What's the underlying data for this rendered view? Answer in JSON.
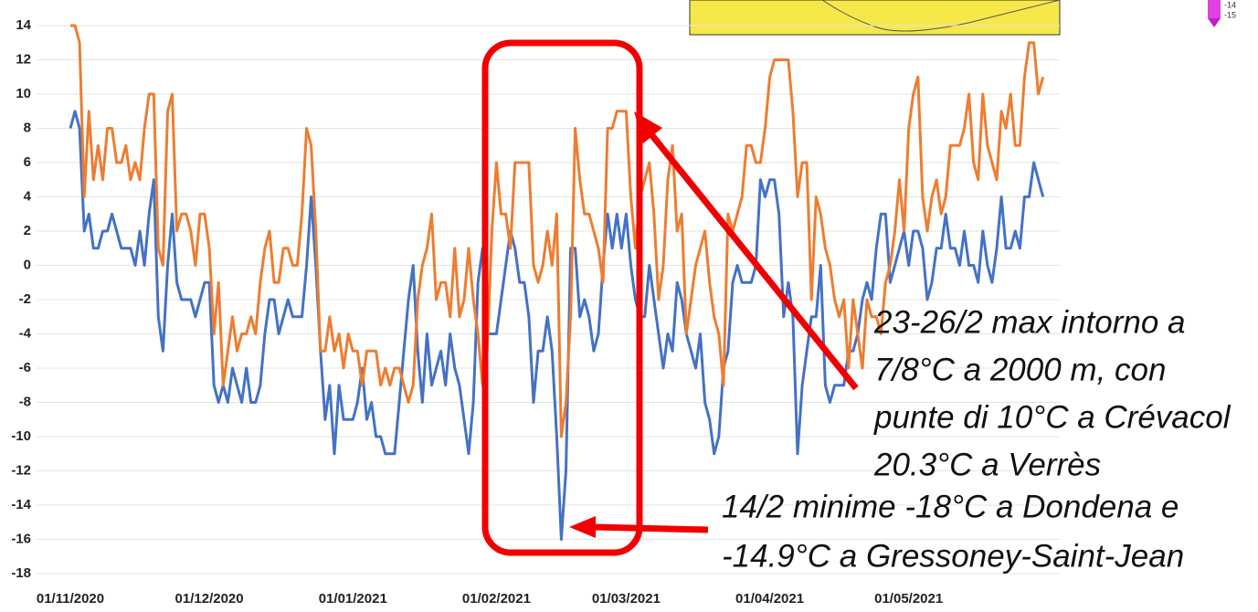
{
  "chart_data": {
    "type": "line",
    "categories": [
      "01/11/2020",
      null,
      null,
      null,
      null,
      null,
      null,
      null,
      null,
      null,
      null,
      null,
      null,
      null,
      null,
      null,
      null,
      null,
      null,
      null,
      null,
      null,
      null,
      null,
      null,
      null,
      null,
      null,
      null,
      null,
      "01/12/2020",
      null,
      null,
      null,
      null,
      null,
      null,
      null,
      null,
      null,
      null,
      null,
      null,
      null,
      null,
      null,
      null,
      null,
      null,
      null,
      null,
      null,
      null,
      null,
      null,
      null,
      null,
      null,
      null,
      null,
      null,
      "01/01/2021",
      null,
      null,
      null,
      null,
      null,
      null,
      null,
      null,
      null,
      null,
      null,
      null,
      null,
      null,
      null,
      null,
      null,
      null,
      null,
      null,
      null,
      null,
      null,
      null,
      null,
      null,
      null,
      null,
      null,
      null,
      "01/02/2021",
      null,
      null,
      null,
      null,
      null,
      null,
      null,
      null,
      null,
      null,
      null,
      null,
      null,
      null,
      null,
      null,
      null,
      null,
      null,
      null,
      null,
      null,
      null,
      null,
      null,
      null,
      null,
      "01/03/2021",
      null,
      null,
      null,
      null,
      null,
      null,
      null,
      null,
      null,
      null,
      null,
      null,
      null,
      null,
      null,
      null,
      null,
      null,
      null,
      null,
      null,
      null,
      null,
      null,
      null,
      null,
      null,
      null,
      null,
      null,
      "01/04/2021",
      null,
      null,
      null,
      null,
      null,
      null,
      null,
      null,
      null,
      null,
      null,
      null,
      null,
      null,
      null,
      null,
      null,
      null,
      null,
      null,
      null,
      null,
      null,
      null,
      null,
      null,
      null,
      null,
      null,
      "01/05/2021",
      null,
      null,
      null,
      null,
      null,
      null,
      null,
      null,
      null,
      null,
      null,
      null,
      null,
      null,
      null,
      null,
      null,
      null,
      null,
      null,
      null,
      null,
      null,
      null,
      null,
      null,
      null,
      null,
      null
    ],
    "series": [
      {
        "color": "#4472c4",
        "values": [
          8,
          9,
          8,
          2,
          3,
          1,
          1,
          2,
          2,
          3,
          2,
          1,
          1,
          1,
          0,
          2,
          0,
          3,
          5,
          -3,
          -5,
          0,
          3,
          -1,
          -2,
          -2,
          -2,
          -3,
          -2,
          -1,
          -1,
          -7,
          -8,
          -7,
          -8,
          -6,
          -7,
          -8,
          -6,
          -8,
          -8,
          -7,
          -4,
          -2,
          -2,
          -4,
          -3,
          -2,
          -3,
          -3,
          -3,
          0,
          4,
          0,
          -5,
          -9,
          -7,
          -11,
          -7,
          -9,
          -9,
          -9,
          -8,
          -6,
          -9,
          -8,
          -10,
          -10,
          -11,
          -11,
          -11,
          -8,
          -5,
          -2,
          0,
          -5,
          -8,
          -4,
          -7,
          -6,
          -5,
          -7,
          -4,
          -6,
          -7,
          -9,
          -11,
          -8,
          -1,
          1,
          -4,
          -4,
          -4,
          -2,
          0,
          2,
          1,
          -1,
          -1,
          -3,
          -8,
          -5,
          -5,
          -3,
          -5,
          -10,
          -16,
          -12,
          1,
          1,
          -3,
          -2,
          -3,
          -5,
          -4,
          0,
          3,
          1,
          3,
          1,
          3,
          0,
          -2,
          -3,
          -3,
          0,
          -2,
          -4,
          -6,
          -4,
          -5,
          -1,
          -2,
          -4,
          -5,
          -6,
          -4,
          -8,
          -9,
          -11,
          -10,
          -6,
          -5,
          -1,
          0,
          -1,
          -1,
          -1,
          0,
          5,
          4,
          5,
          5,
          3,
          -3,
          -1,
          -3,
          -11,
          -7,
          -5,
          -3,
          -3,
          0,
          -7,
          -8,
          -7,
          -7,
          -7,
          -5,
          -5,
          -4,
          -2,
          -1,
          -2,
          1,
          3,
          3,
          -1,
          0,
          1,
          2,
          0,
          2,
          2,
          1,
          -2,
          -1,
          1,
          1,
          3,
          1,
          1,
          0,
          2,
          0,
          0,
          -1,
          2,
          0,
          -1,
          1,
          4,
          1,
          1,
          2,
          1,
          4,
          4,
          6,
          5,
          4
        ]
      },
      {
        "color": "#ed7d31",
        "values": [
          14,
          14,
          13,
          4,
          9,
          5,
          7,
          5,
          8,
          8,
          6,
          6,
          7,
          5,
          6,
          5,
          8,
          10,
          10,
          1,
          0,
          9,
          10,
          2,
          3,
          3,
          2,
          0,
          3,
          3,
          1,
          -4,
          -1,
          -7,
          -5,
          -3,
          -5,
          -4,
          -4,
          -3,
          -4,
          -1,
          1,
          2,
          -1,
          -1,
          1,
          1,
          0,
          0,
          3,
          8,
          7,
          2,
          -5,
          -5,
          -3,
          -5,
          -4,
          -6,
          -4,
          -5,
          -5,
          -7,
          -5,
          -5,
          -5,
          -7,
          -6,
          -7,
          -6,
          -6,
          -7,
          -8,
          -7,
          -2,
          0,
          1,
          3,
          -2,
          -1,
          -1,
          -3,
          1,
          -3,
          -2,
          1,
          -2,
          -4,
          -7,
          -5,
          2,
          6,
          3,
          3,
          1,
          6,
          6,
          6,
          6,
          0,
          -1,
          0,
          2,
          0,
          3,
          -10,
          -8,
          -3,
          8,
          5,
          3,
          3,
          2,
          1,
          -1,
          8,
          8,
          9,
          9,
          9,
          4,
          1,
          4,
          5,
          6,
          3,
          -2,
          0,
          5,
          7,
          2,
          3,
          -4,
          -2,
          0,
          1,
          2,
          -1,
          -3,
          -4,
          -7,
          3,
          2,
          3,
          4,
          7,
          7,
          6,
          6,
          8,
          11,
          12,
          12,
          12,
          12,
          9,
          4,
          6,
          6,
          -2,
          4,
          3,
          1,
          0,
          -2,
          -3,
          -2,
          -6,
          -2,
          -4,
          -6,
          -2,
          -3,
          -3,
          -4,
          -1,
          0,
          2,
          5,
          2,
          8,
          10,
          11,
          4,
          2,
          4,
          5,
          3,
          4,
          7,
          7,
          7,
          8,
          10,
          6,
          5,
          10,
          7,
          6,
          5,
          9,
          8,
          10,
          7,
          7,
          11,
          13,
          13,
          10,
          11
        ]
      }
    ],
    "ylim": [
      -18,
      14
    ],
    "yticks": [
      -18,
      -16,
      -14,
      -12,
      -10,
      -8,
      -6,
      -4,
      -2,
      0,
      2,
      4,
      6,
      8,
      10,
      12,
      14
    ],
    "grid": true,
    "annotations": [
      {
        "lines": [
          "23-26/2 max intorno a",
          "7/8°C a 2000 m, con",
          "punte di 10°C a Crévacol",
          "20.3°C a Verrès"
        ]
      },
      {
        "lines": [
          "14/2 minime -18°C a Dondena e",
          "-14.9°C a Gressoney-Saint-Jean"
        ]
      }
    ],
    "inset_labels": [
      "-14",
      "-15"
    ]
  }
}
